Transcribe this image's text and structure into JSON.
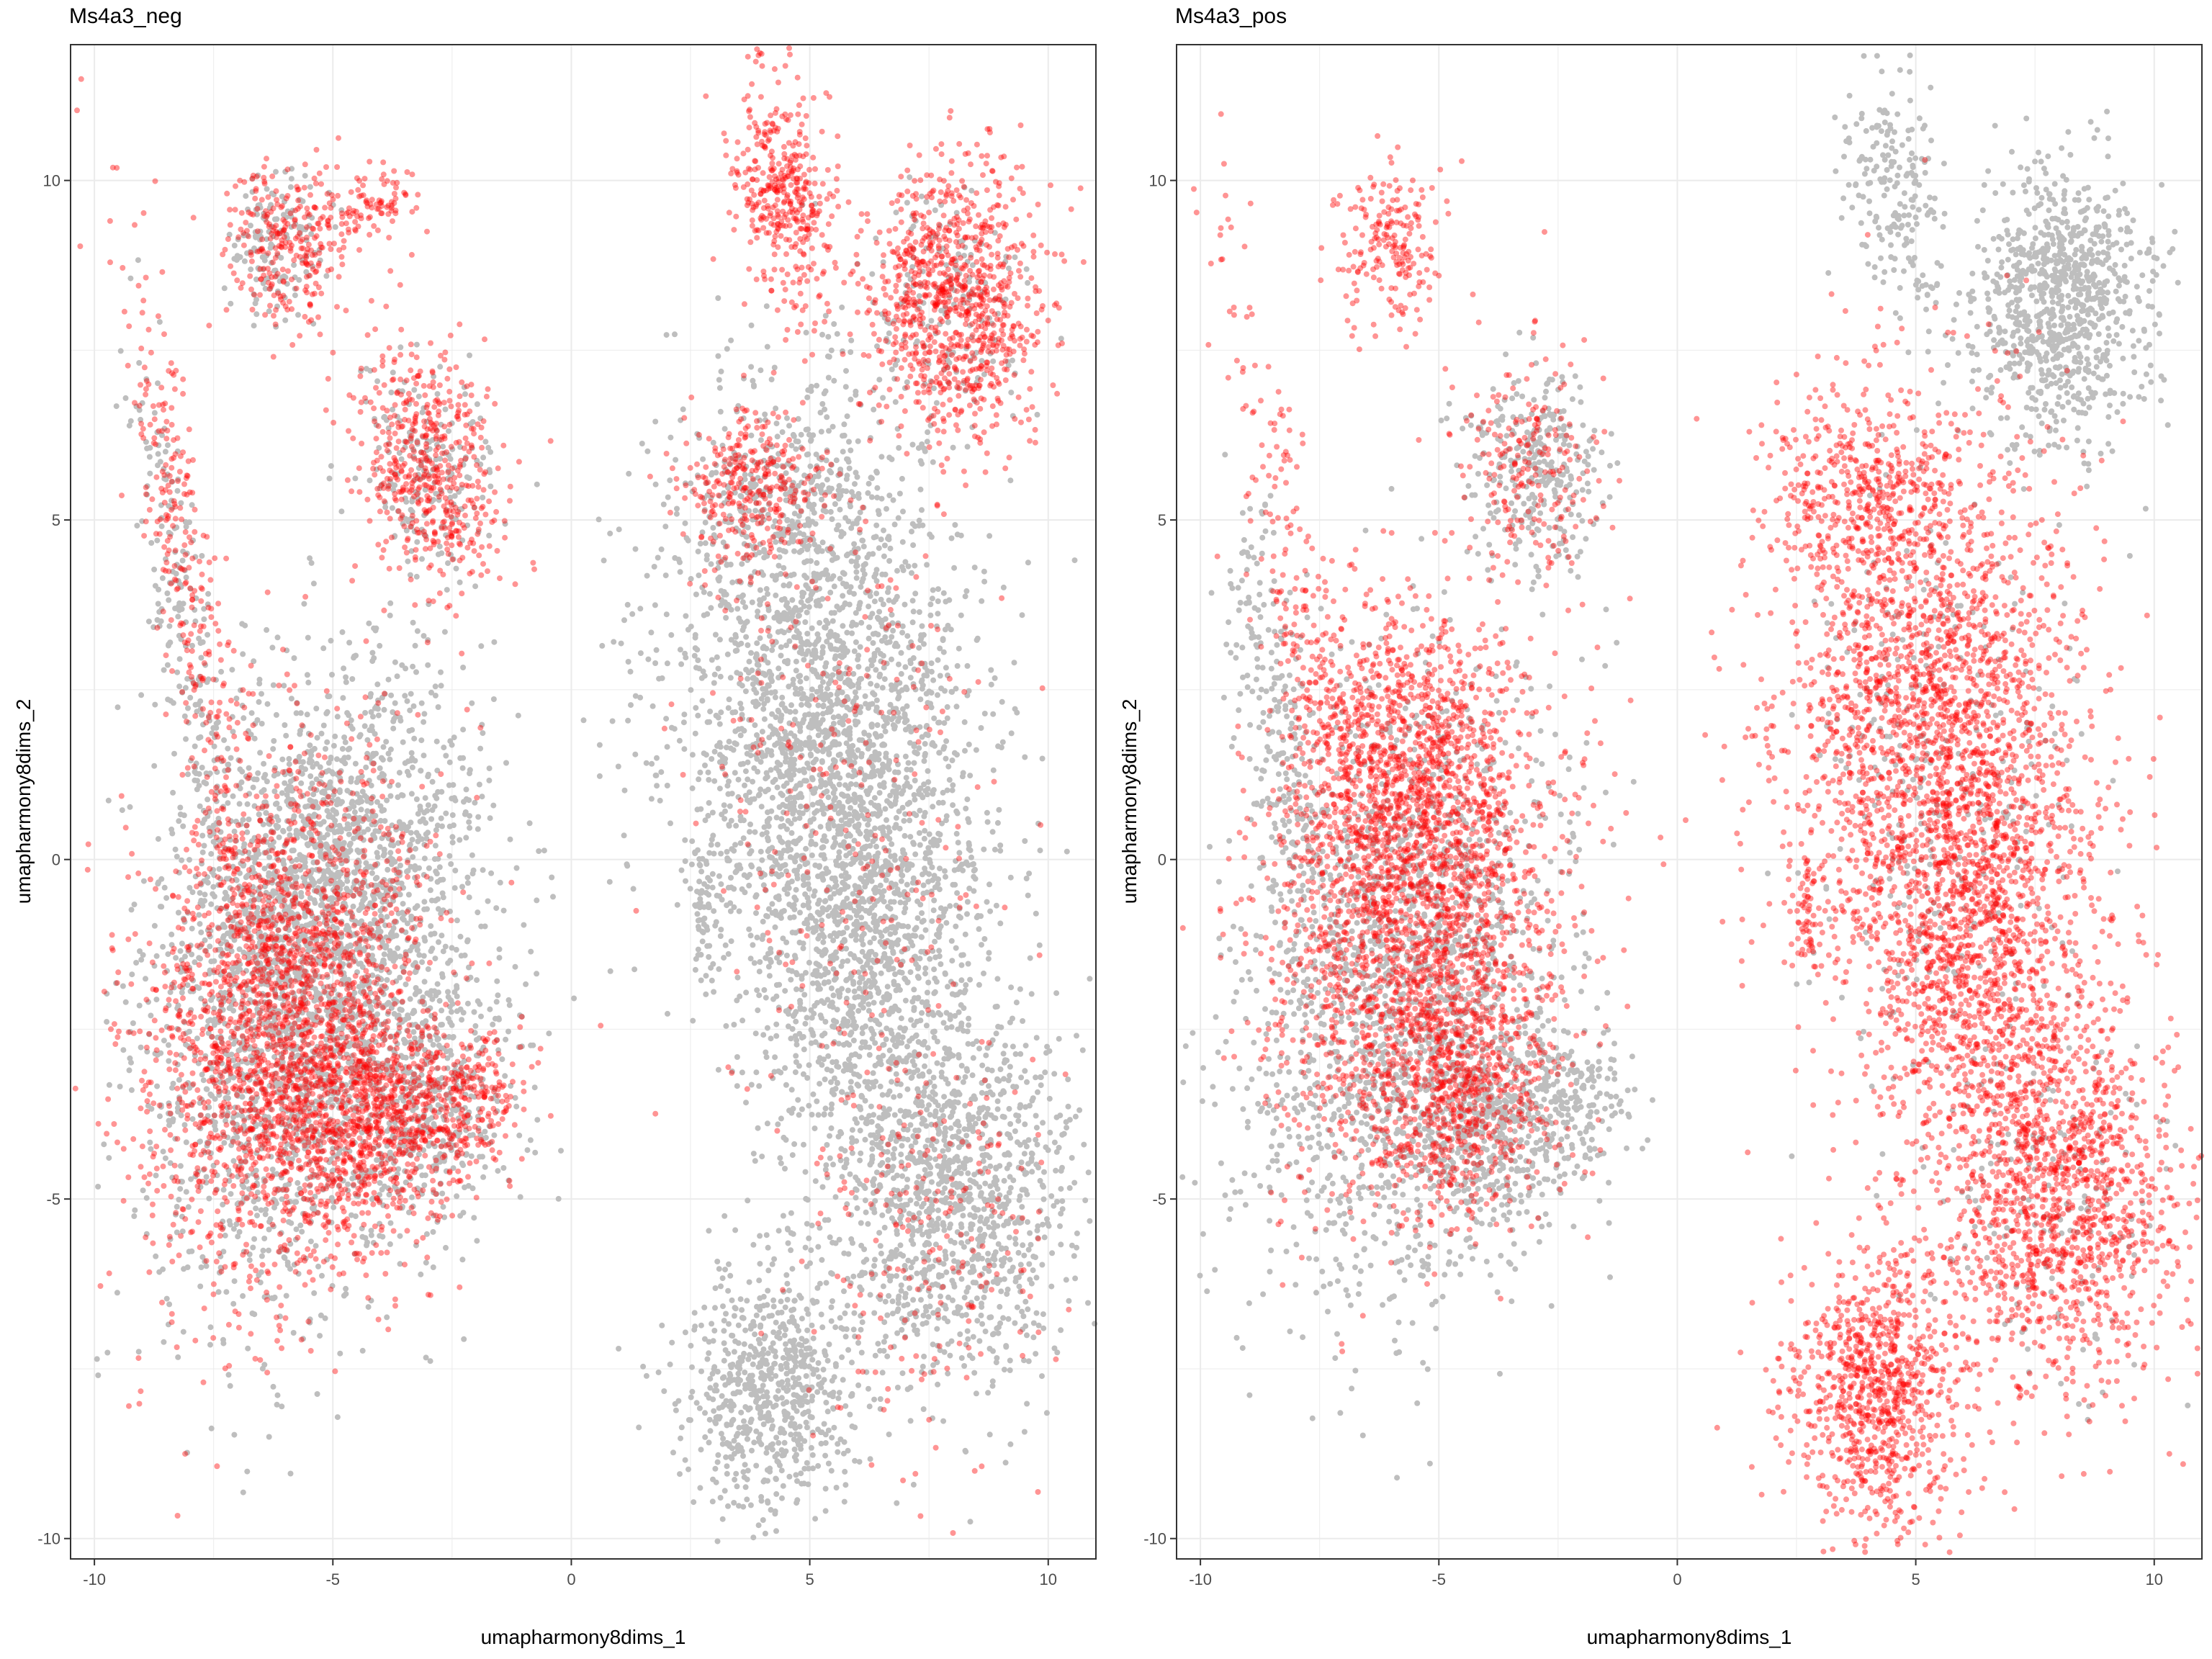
{
  "chart_data": [
    {
      "type": "scatter",
      "title": "Ms4a3_neg",
      "xlabel": "umapharmony8dims_1",
      "ylabel": "umapharmony8dims_2",
      "xlim": [
        -10.5,
        11
      ],
      "ylim": [
        -10.3,
        12
      ],
      "xticks": [
        -10,
        -5,
        0,
        5,
        10
      ],
      "yticks": [
        -10,
        -5,
        0,
        5,
        10
      ],
      "grid": true,
      "colors": {
        "background": "#bebebe",
        "highlight": "#ff0000"
      },
      "series": [
        {
          "role": "background",
          "color": "#bebebe",
          "clusters": [
            {
              "x": -5.8,
              "y": -2.0,
              "sx": 1.5,
              "sy": 2.2,
              "r": -0.2,
              "n": 2200
            },
            {
              "x": -4.5,
              "y": 0.0,
              "sx": 1.4,
              "sy": 1.4,
              "r": 0.0,
              "n": 800
            },
            {
              "x": -3.0,
              "y": -3.5,
              "sx": 1.0,
              "sy": 1.0,
              "r": 0.0,
              "n": 500
            },
            {
              "x": 5.3,
              "y": 2.0,
              "sx": 1.6,
              "sy": 2.3,
              "r": 0.15,
              "n": 2400
            },
            {
              "x": 6.2,
              "y": -1.5,
              "sx": 1.2,
              "sy": 1.5,
              "r": 0.0,
              "n": 900
            },
            {
              "x": 8.0,
              "y": -5.0,
              "sx": 1.3,
              "sy": 1.4,
              "r": 0.0,
              "n": 1200
            },
            {
              "x": 4.2,
              "y": -7.8,
              "sx": 0.9,
              "sy": 1.0,
              "r": 0.0,
              "n": 700
            },
            {
              "x": 4.6,
              "y": 5.4,
              "sx": 1.0,
              "sy": 0.6,
              "r": 0.0,
              "n": 200
            },
            {
              "x": -3.0,
              "y": 5.8,
              "sx": 0.7,
              "sy": 0.8,
              "r": 0.5,
              "n": 200
            },
            {
              "x": -6.2,
              "y": 9.0,
              "sx": 0.5,
              "sy": 0.6,
              "r": 0.0,
              "n": 150
            },
            {
              "x": 8.0,
              "y": 8.2,
              "sx": 0.8,
              "sy": 0.8,
              "r": 0.0,
              "n": 150
            },
            {
              "x": -8.2,
              "y": 3.5,
              "sx": 0.3,
              "sy": 2.0,
              "r": 0.2,
              "n": 200
            },
            {
              "x": 2.8,
              "y": -0.6,
              "sx": 0.15,
              "sy": 0.5,
              "r": 0.0,
              "n": 60
            }
          ]
        },
        {
          "role": "highlight",
          "color": "#ff0000",
          "clusters": [
            {
              "x": -6.0,
              "y": -2.4,
              "sx": 1.4,
              "sy": 1.9,
              "r": -0.2,
              "n": 2200
            },
            {
              "x": -4.0,
              "y": -3.8,
              "sx": 1.0,
              "sy": 0.8,
              "r": 0.0,
              "n": 700
            },
            {
              "x": -2.2,
              "y": -3.5,
              "sx": 0.6,
              "sy": 0.5,
              "r": 0.0,
              "n": 200
            },
            {
              "x": -3.0,
              "y": 5.8,
              "sx": 0.7,
              "sy": 0.9,
              "r": 0.5,
              "n": 500
            },
            {
              "x": -6.0,
              "y": 9.0,
              "sx": 0.6,
              "sy": 0.6,
              "r": 0.0,
              "n": 250
            },
            {
              "x": -4.4,
              "y": 9.6,
              "sx": 0.6,
              "sy": 0.25,
              "r": 0.3,
              "n": 100
            },
            {
              "x": -8.0,
              "y": 4.0,
              "sx": 0.35,
              "sy": 2.8,
              "r": 0.25,
              "n": 300
            },
            {
              "x": 8.0,
              "y": 8.2,
              "sx": 0.9,
              "sy": 1.0,
              "r": 0.0,
              "n": 900
            },
            {
              "x": 4.5,
              "y": 9.8,
              "sx": 0.5,
              "sy": 0.9,
              "r": 0.3,
              "n": 400
            },
            {
              "x": 3.8,
              "y": 5.5,
              "sx": 0.7,
              "sy": 0.6,
              "r": 0.0,
              "n": 300
            },
            {
              "x": 5.5,
              "y": 1.0,
              "sx": 1.6,
              "sy": 2.5,
              "r": 0.15,
              "n": 250
            },
            {
              "x": 7.5,
              "y": -5.5,
              "sx": 1.3,
              "sy": 1.5,
              "r": 0.0,
              "n": 200
            }
          ]
        }
      ]
    },
    {
      "type": "scatter",
      "title": "Ms4a3_pos",
      "xlabel": "umapharmony8dims_1",
      "ylabel": "umapharmony8dims_2",
      "xlim": [
        -10.5,
        11
      ],
      "ylim": [
        -10.3,
        12
      ],
      "xticks": [
        -10,
        -5,
        0,
        5,
        10
      ],
      "yticks": [
        -10,
        -5,
        0,
        5,
        10
      ],
      "grid": true,
      "colors": {
        "background": "#bebebe",
        "highlight": "#ff0000"
      },
      "series": [
        {
          "role": "background",
          "color": "#bebebe",
          "clusters": [
            {
              "x": -5.8,
              "y": -2.0,
              "sx": 1.6,
              "sy": 2.3,
              "r": -0.2,
              "n": 1700
            },
            {
              "x": -4.0,
              "y": -3.8,
              "sx": 1.0,
              "sy": 0.8,
              "r": 0.0,
              "n": 500
            },
            {
              "x": -2.2,
              "y": -3.5,
              "sx": 0.6,
              "sy": 0.5,
              "r": 0.0,
              "n": 150
            },
            {
              "x": -3.0,
              "y": 5.8,
              "sx": 0.7,
              "sy": 0.8,
              "r": 0.5,
              "n": 300
            },
            {
              "x": -8.3,
              "y": 1.5,
              "sx": 0.4,
              "sy": 2.0,
              "r": 0.2,
              "n": 250
            },
            {
              "x": 8.0,
              "y": 8.2,
              "sx": 0.9,
              "sy": 1.0,
              "r": 0.0,
              "n": 900
            },
            {
              "x": 4.5,
              "y": 9.8,
              "sx": 0.5,
              "sy": 0.9,
              "r": 0.3,
              "n": 200
            },
            {
              "x": 5.5,
              "y": 1.0,
              "sx": 1.4,
              "sy": 2.2,
              "r": 0.15,
              "n": 300
            },
            {
              "x": 7.8,
              "y": -5.0,
              "sx": 1.2,
              "sy": 1.3,
              "r": 0.0,
              "n": 150
            }
          ]
        },
        {
          "role": "highlight",
          "color": "#ff0000",
          "clusters": [
            {
              "x": -5.5,
              "y": -0.8,
              "sx": 1.5,
              "sy": 2.0,
              "r": -0.1,
              "n": 2200
            },
            {
              "x": -5.8,
              "y": 1.5,
              "sx": 1.0,
              "sy": 1.0,
              "r": 0.0,
              "n": 600
            },
            {
              "x": -4.5,
              "y": -3.5,
              "sx": 1.0,
              "sy": 0.9,
              "r": 0.0,
              "n": 500
            },
            {
              "x": 5.3,
              "y": 2.0,
              "sx": 1.6,
              "sy": 2.3,
              "r": 0.15,
              "n": 2300
            },
            {
              "x": 6.2,
              "y": -1.5,
              "sx": 1.2,
              "sy": 1.5,
              "r": 0.0,
              "n": 900
            },
            {
              "x": 8.0,
              "y": -5.0,
              "sx": 1.3,
              "sy": 1.4,
              "r": 0.0,
              "n": 1300
            },
            {
              "x": 4.2,
              "y": -7.8,
              "sx": 0.9,
              "sy": 1.0,
              "r": 0.0,
              "n": 900
            },
            {
              "x": 4.0,
              "y": 5.5,
              "sx": 1.0,
              "sy": 0.6,
              "r": 0.0,
              "n": 300
            },
            {
              "x": -6.0,
              "y": 9.0,
              "sx": 0.6,
              "sy": 0.6,
              "r": 0.0,
              "n": 200
            },
            {
              "x": -8.0,
              "y": 4.0,
              "sx": 0.35,
              "sy": 2.8,
              "r": 0.25,
              "n": 200
            },
            {
              "x": -3.0,
              "y": 5.8,
              "sx": 0.7,
              "sy": 0.9,
              "r": 0.5,
              "n": 200
            },
            {
              "x": 2.7,
              "y": -0.8,
              "sx": 0.15,
              "sy": 0.5,
              "r": 0.0,
              "n": 60
            },
            {
              "x": 4.6,
              "y": -4.7,
              "sx": 0.05,
              "sy": 0.05,
              "r": 0.0,
              "n": 6
            }
          ]
        }
      ]
    }
  ]
}
